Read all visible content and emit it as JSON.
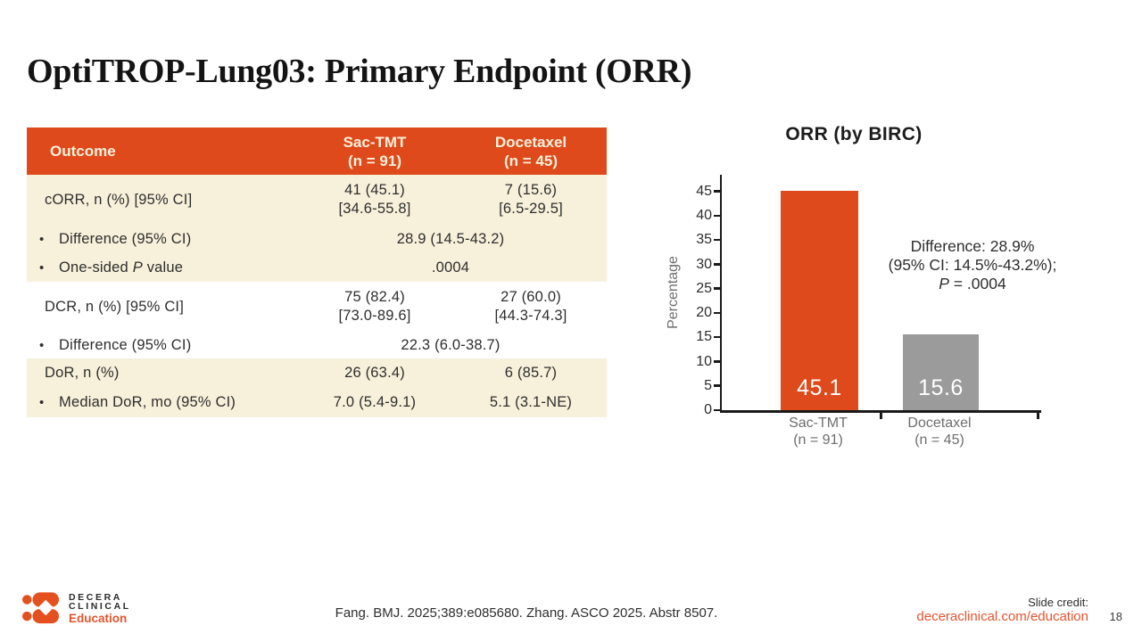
{
  "header": {
    "title": "OptiTROP-Lung03: Primary Endpoint (ORR)"
  },
  "table": {
    "bullet_char": "•",
    "col_outcome": "Outcome",
    "col_sac_l1": "Sac-TMT",
    "col_sac_l2": "(n = 91)",
    "col_doc_l1": "Docetaxel",
    "col_doc_l2": "(n = 45)",
    "rows": {
      "corr": {
        "label": "cORR, n (%) [95% CI]",
        "sac_l1": "41 (45.1)",
        "sac_l2": "[34.6-55.8]",
        "doc_l1": "7 (15.6)",
        "doc_l2": "[6.5-29.5]"
      },
      "diff1": {
        "label": "Difference (95% CI)",
        "merged": "28.9 (14.5-43.2)"
      },
      "pvalue": {
        "label_pre": "One-sided ",
        "label_italic": "P",
        "label_post": " value",
        "merged": ".0004"
      },
      "dcr": {
        "label": "DCR, n (%) [95% CI]",
        "sac_l1": "75 (82.4)",
        "sac_l2": "[73.0-89.6]",
        "doc_l1": "27 (60.0)",
        "doc_l2": "[44.3-74.3]"
      },
      "diff2": {
        "label": "Difference (95% CI)",
        "merged": "22.3 (6.0-38.7)"
      },
      "dor": {
        "label": "DoR, n (%)",
        "sac": "26 (63.4)",
        "doc": "6 (85.7)"
      },
      "mdor": {
        "label": "Median DoR, mo (95% CI)",
        "sac": "7.0 (5.4-9.1)",
        "doc": "5.1 (3.1-NE)"
      }
    }
  },
  "chart_data": {
    "type": "bar",
    "title": "ORR (by BIRC)",
    "xlabel": "",
    "ylabel": "Percentage",
    "ylim": [
      0,
      45
    ],
    "yticks": [
      0,
      5,
      10,
      15,
      20,
      25,
      30,
      35,
      40,
      45
    ],
    "grid": false,
    "categories": [
      {
        "line1": "Sac-TMT",
        "line2": "(n = 91)"
      },
      {
        "line1": "Docetaxel",
        "line2": "(n = 45)"
      }
    ],
    "values": [
      45.1,
      15.6
    ],
    "value_labels": [
      "45.1",
      "15.6"
    ],
    "bar_colors": [
      "#DE4A1B",
      "#9B9B9B"
    ],
    "annotation": {
      "line1": "Difference: 28.9%",
      "line2": "(95% CI: 14.5%-43.2%);",
      "line3_italic": "P",
      "line3_rest": " = .0004"
    }
  },
  "footer": {
    "logo_line1": "DECERA",
    "logo_line2": "CLINICAL",
    "logo_line3": "Education",
    "citation": "Fang. BMJ. 2025;389:e085680. Zhang. ASCO 2025. Abstr 8507.",
    "credit_label": "Slide credit:",
    "credit_link": "deceraclinical.com/education",
    "page_number": "18"
  },
  "colors": {
    "primary_orange": "#DE4A1B",
    "row_cream": "#F7F0DA",
    "bar_gray": "#9B9B9B",
    "link_orange": "#E4542E"
  }
}
